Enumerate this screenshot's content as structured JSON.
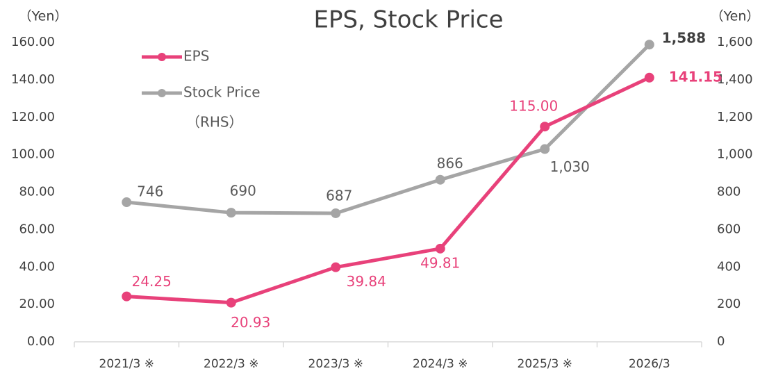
{
  "chart_data": {
    "type": "line",
    "title": "EPS,  Stock Price",
    "y_label": "（Yen）",
    "y2_label": "（Yen）",
    "categories": [
      "2021/3 ※",
      "2022/3 ※",
      "2023/3 ※",
      "2024/3 ※",
      "2025/3 ※",
      "2026/3"
    ],
    "series": [
      {
        "name": "EPS",
        "color": "#e8417a",
        "values": [
          24.25,
          20.93,
          39.84,
          49.81,
          115.0,
          141.15
        ],
        "value_labels": [
          "24.25",
          "20.93",
          "39.84",
          "49.81",
          "115.00",
          "141.15"
        ]
      },
      {
        "name": "Stock Price",
        "color": "#a5a5a5",
        "axis": "y2",
        "values": [
          746,
          690,
          687,
          866,
          1030,
          1588
        ],
        "value_labels": [
          "746",
          "690",
          "687",
          "866",
          "1,030",
          "1,588"
        ]
      }
    ],
    "rhs_note": "（RHS）",
    "ylim": [
      0,
      160
    ],
    "yticks": [
      {
        "value": 0,
        "label": "0.00"
      },
      {
        "value": 20,
        "label": "20.00"
      },
      {
        "value": 40,
        "label": "40.00"
      },
      {
        "value": 60,
        "label": "60.00"
      },
      {
        "value": 80,
        "label": "80.00"
      },
      {
        "value": 100,
        "label": "100.00"
      },
      {
        "value": 120,
        "label": "120.00"
      },
      {
        "value": 140,
        "label": "140.00"
      },
      {
        "value": 160,
        "label": "160.00"
      }
    ],
    "y2lim": [
      0,
      1600
    ],
    "y2ticks": [
      0,
      200,
      400,
      600,
      800,
      {
        "value": 1000,
        "label": "1,000"
      },
      {
        "value": 1200,
        "label": "1,200"
      },
      {
        "value": 1400,
        "label": "1,400"
      },
      {
        "value": 1600,
        "label": "1,600"
      }
    ],
    "grid": false,
    "legend": "top-left"
  }
}
